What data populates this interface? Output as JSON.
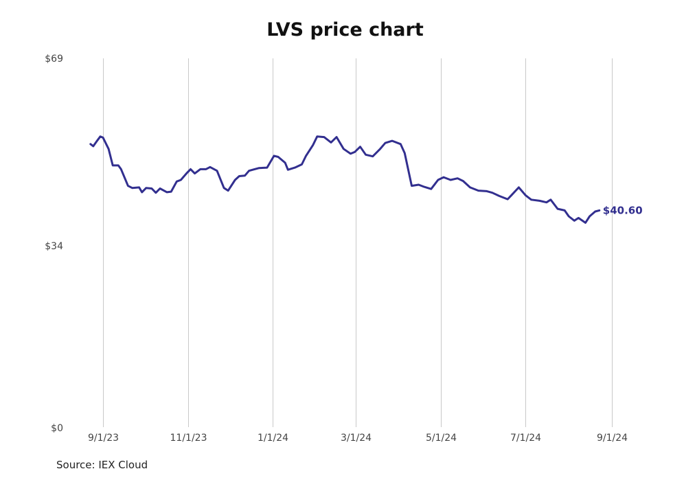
{
  "chart_data": {
    "type": "line",
    "title": "LVS price chart",
    "source": "Source: IEX Cloud",
    "x_ticks": [
      "9/1/23",
      "11/1/23",
      "1/1/24",
      "3/1/24",
      "5/1/24",
      "7/1/24",
      "9/1/24"
    ],
    "y_ticks": [
      "$0",
      "$34",
      "$69"
    ],
    "ylim": [
      0,
      69
    ],
    "xlim": [
      "2023-08-23",
      "2024-09-01"
    ],
    "grid": "vertical",
    "end_label": "$40.60",
    "colors": {
      "line": "#322f8f",
      "grid": "#c8c8c8",
      "tick_text": "#444444"
    },
    "series": [
      {
        "x": [
          "2023-08-23",
          "2023-08-25",
          "2023-08-28",
          "2023-08-30",
          "2023-09-01",
          "2023-09-05",
          "2023-09-08",
          "2023-09-12",
          "2023-09-14",
          "2023-09-19",
          "2023-09-22",
          "2023-09-27",
          "2023-09-29",
          "2023-10-02",
          "2023-10-06",
          "2023-10-09",
          "2023-10-12",
          "2023-10-17",
          "2023-10-20",
          "2023-10-24",
          "2023-10-27",
          "2023-10-31",
          "2023-11-03",
          "2023-11-06",
          "2023-11-10",
          "2023-11-14",
          "2023-11-17",
          "2023-11-22",
          "2023-11-27",
          "2023-11-30",
          "2023-12-05",
          "2023-12-08",
          "2023-12-12",
          "2023-12-15",
          "2023-12-19",
          "2023-12-22",
          "2023-12-28",
          "2024-01-02",
          "2024-01-05",
          "2024-01-10",
          "2024-01-12",
          "2024-01-17",
          "2024-01-22",
          "2024-01-25",
          "2024-01-30",
          "2024-02-02",
          "2024-02-07",
          "2024-02-12",
          "2024-02-16",
          "2024-02-21",
          "2024-02-26",
          "2024-02-29",
          "2024-03-04",
          "2024-03-08",
          "2024-03-13",
          "2024-03-18",
          "2024-03-22",
          "2024-03-27",
          "2024-04-02",
          "2024-04-05",
          "2024-04-10",
          "2024-04-15",
          "2024-04-19",
          "2024-04-24",
          "2024-04-29",
          "2024-05-03",
          "2024-05-08",
          "2024-05-13",
          "2024-05-17",
          "2024-05-22",
          "2024-05-28",
          "2024-06-03",
          "2024-06-07",
          "2024-06-12",
          "2024-06-18",
          "2024-06-21",
          "2024-06-26",
          "2024-07-01",
          "2024-07-05",
          "2024-07-11",
          "2024-07-16",
          "2024-07-19",
          "2024-07-24",
          "2024-07-29",
          "2024-08-01",
          "2024-08-05",
          "2024-08-08",
          "2024-08-13",
          "2024-08-16",
          "2024-08-20",
          "2024-08-23"
        ],
        "values": [
          53.0,
          52.6,
          53.7,
          54.4,
          54.2,
          52.1,
          49.0,
          49.0,
          48.3,
          45.2,
          44.8,
          44.9,
          44.0,
          44.8,
          44.7,
          43.9,
          44.7,
          44.0,
          44.1,
          46.0,
          46.3,
          47.5,
          48.3,
          47.5,
          48.3,
          48.3,
          48.7,
          48.0,
          44.8,
          44.3,
          46.3,
          47.0,
          47.1,
          48.0,
          48.3,
          48.5,
          48.6,
          50.8,
          50.6,
          49.5,
          48.2,
          48.6,
          49.2,
          50.8,
          52.8,
          54.4,
          54.3,
          53.3,
          54.3,
          52.1,
          51.2,
          51.5,
          52.5,
          51.0,
          50.7,
          52.0,
          53.2,
          53.6,
          53.0,
          51.3,
          45.2,
          45.4,
          45.0,
          44.6,
          46.3,
          46.8,
          46.3,
          46.6,
          46.1,
          44.9,
          44.3,
          44.2,
          43.9,
          43.3,
          42.7,
          43.5,
          44.9,
          43.4,
          42.6,
          42.4,
          42.1,
          42.6,
          40.9,
          40.6,
          39.5,
          38.7,
          39.2,
          38.3,
          39.5,
          40.4,
          40.6
        ]
      }
    ]
  }
}
